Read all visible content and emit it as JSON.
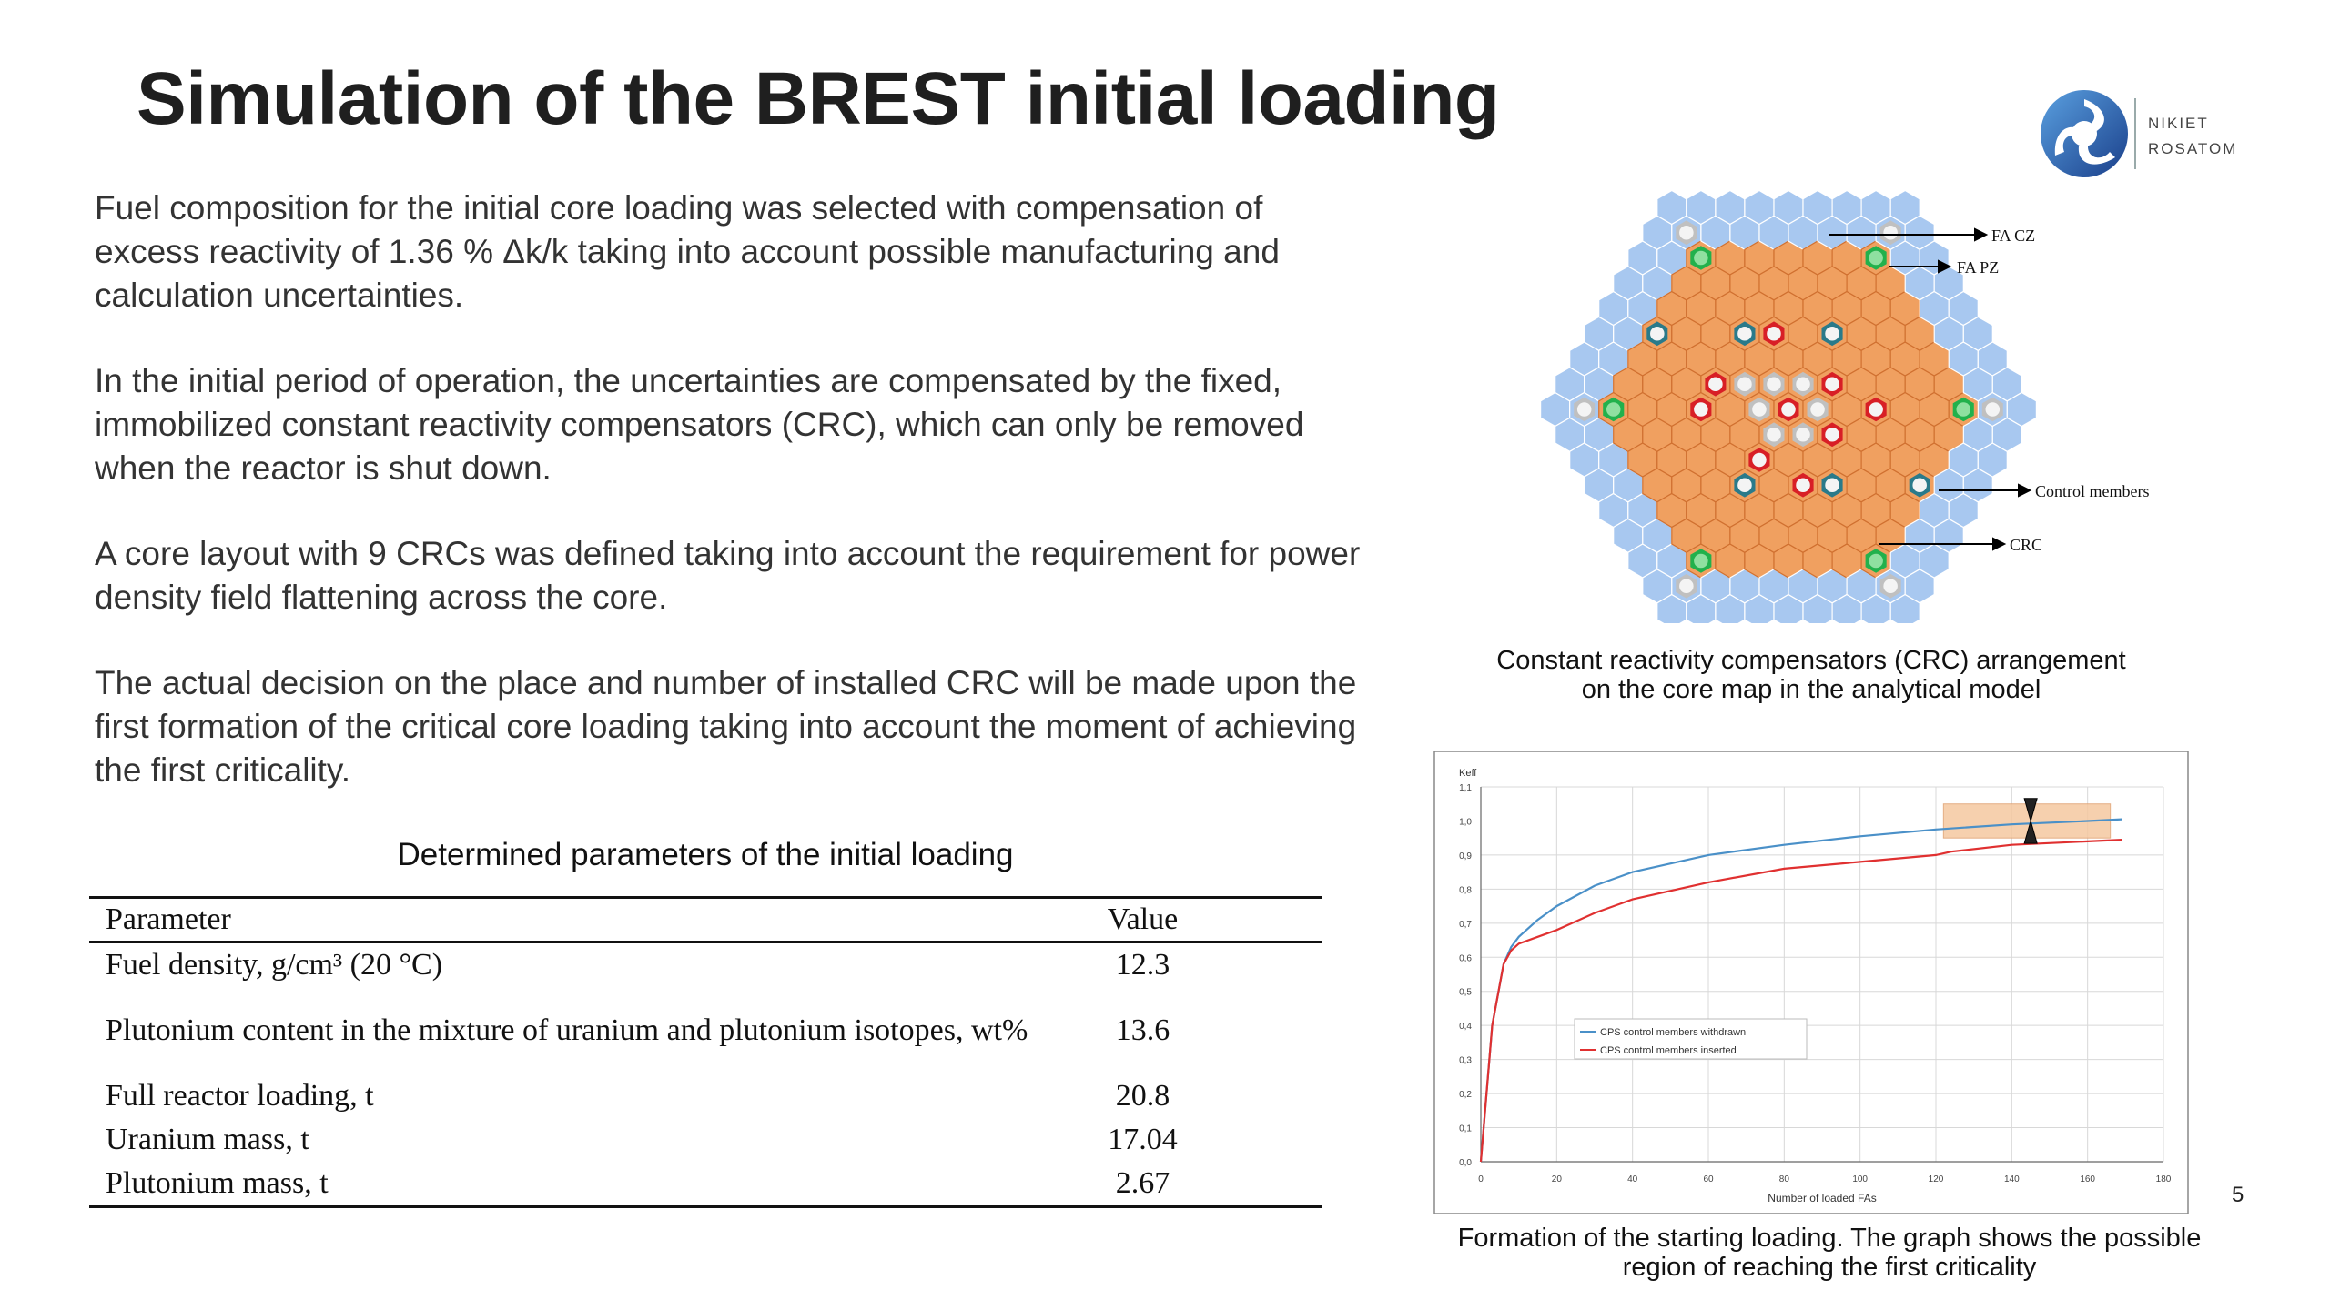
{
  "slide": {
    "title": "Simulation of the BREST initial loading",
    "page_number": "5"
  },
  "logo": {
    "line1": "NIKIET",
    "line2": "ROSATOM"
  },
  "paragraphs": [
    "Fuel composition for the initial core loading was selected with compensation of excess reactivity of 1.36 % Δk/k taking into account possible manufacturing and calculation uncertainties.",
    "In the initial period of operation, the uncertainties are compensated by the fixed, immobilized constant reactivity compensators (CRC), which can only be removed when the reactor is shut down.",
    "A core layout with 9 CRCs was defined taking into account the requirement for power density field flattening across the core.",
    "The actual decision on the place and number of installed CRC will be made upon the first formation of the critical core loading taking into account the moment of achieving the first criticality."
  ],
  "table": {
    "caption": "Determined parameters of the initial loading",
    "headers": [
      "Parameter",
      "Value"
    ],
    "rows": [
      {
        "param": "Fuel density, g/cm³ (20 °C)",
        "value": "12.3"
      },
      {
        "param": "Plutonium content in the mixture of uranium and plutonium isotopes, wt%",
        "value": "13.6"
      },
      {
        "param": "Full reactor loading, t",
        "value": "20.8"
      },
      {
        "param": "Uranium mass, t",
        "value": "17.04"
      },
      {
        "param": "Plutonium mass, t",
        "value": "2.67"
      }
    ]
  },
  "core_map": {
    "labels": {
      "fa_cz": "FA CZ",
      "fa_pz": "FA PZ",
      "control": "Control members",
      "crc": "CRC"
    },
    "caption_line1": "Constant reactivity compensators (CRC) arrangement",
    "caption_line2": "on the core map in the analytical model",
    "colors": {
      "reflector": "#a8c8f0",
      "core": "#f0a060",
      "crc": "#22b14c",
      "control": "#c0c0c0",
      "sa": "#d81f26",
      "ip": "#2a7a8a"
    }
  },
  "chart_data": {
    "type": "line",
    "ylabel": "Keff",
    "xlabel": "Number of loaded FAs",
    "xlim": [
      0,
      180
    ],
    "ylim": [
      0.0,
      1.1
    ],
    "x_ticks": [
      "0",
      "20",
      "40",
      "60",
      "80",
      "100",
      "120",
      "140",
      "160",
      "180"
    ],
    "y_ticks": [
      "0,0",
      "0,1",
      "0,2",
      "0,3",
      "0,4",
      "0,5",
      "0,6",
      "0,7",
      "0,8",
      "0,9",
      "1,0",
      "1,1"
    ],
    "grid": true,
    "legend_position": "center-left",
    "series": [
      {
        "name": "CPS control members withdrawn",
        "color": "#4a90c8",
        "x": [
          0,
          3,
          6,
          8,
          10,
          15,
          20,
          30,
          40,
          60,
          80,
          100,
          120,
          140,
          160,
          169
        ],
        "y": [
          0.0,
          0.4,
          0.58,
          0.63,
          0.66,
          0.71,
          0.75,
          0.81,
          0.85,
          0.9,
          0.93,
          0.955,
          0.975,
          0.99,
          1.0,
          1.005
        ]
      },
      {
        "name": "CPS control members inserted",
        "color": "#e03030",
        "x": [
          0,
          3,
          6,
          8,
          10,
          15,
          20,
          30,
          40,
          60,
          80,
          100,
          120,
          124,
          140,
          160,
          169
        ],
        "y": [
          0.0,
          0.4,
          0.58,
          0.62,
          0.64,
          0.66,
          0.68,
          0.73,
          0.77,
          0.82,
          0.86,
          0.88,
          0.9,
          0.91,
          0.93,
          0.94,
          0.945
        ]
      }
    ],
    "highlight_region": {
      "x": [
        122,
        166
      ],
      "y": [
        0.95,
        1.05
      ],
      "marker_x": 145,
      "color": "#f5c8a0"
    }
  },
  "graph_caption_line1": "Formation of the starting loading. The graph shows the possible",
  "graph_caption_line2": "region of reaching the first criticality"
}
